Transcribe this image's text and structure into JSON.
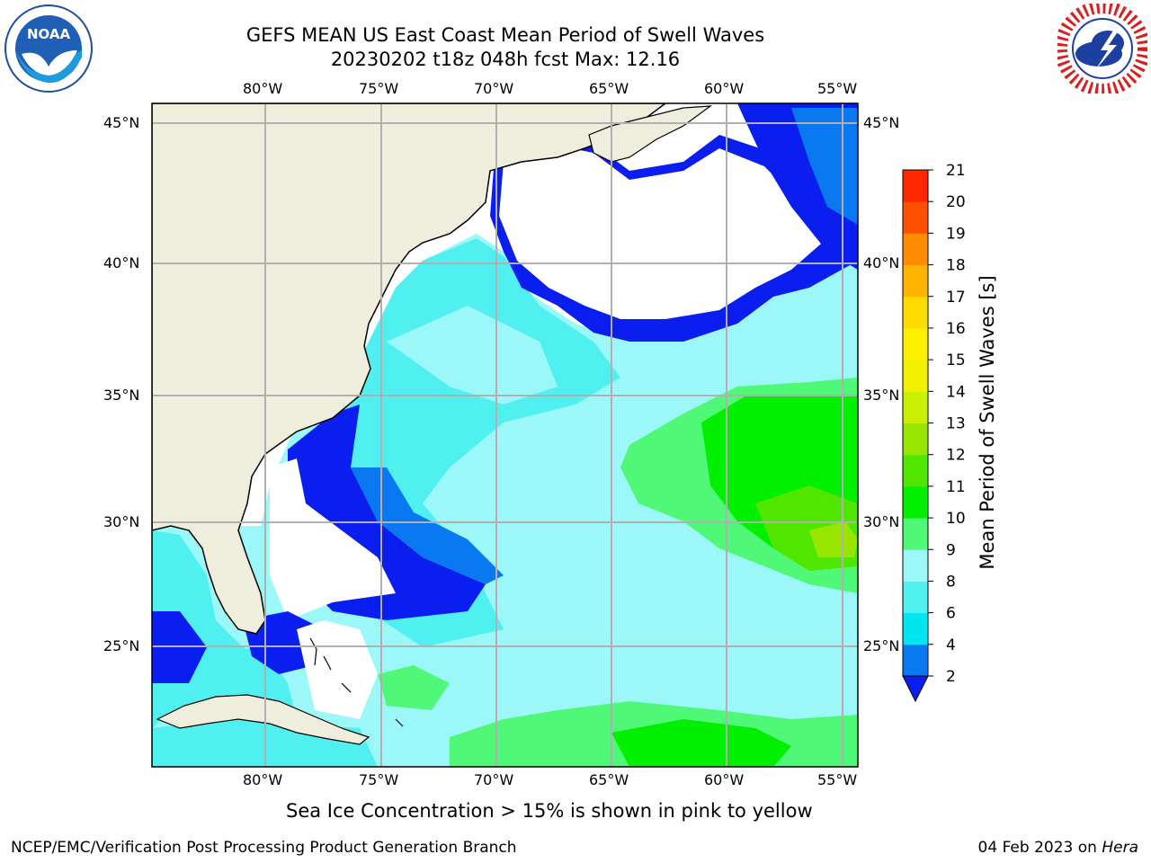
{
  "header": {
    "title_line1": "GEFS MEAN US East Coast Mean Period of Swell Waves",
    "title_line2": "20230202 t18z 048h fcst   Max: 12.16"
  },
  "logos": {
    "left": "noaa-logo",
    "right": "nws-logo"
  },
  "map": {
    "projection": "lat-lon",
    "lon_range": [
      -85,
      -54.4
    ],
    "lat_range": [
      20.4,
      46
    ],
    "lon_ticks": [
      "80°W",
      "75°W",
      "70°W",
      "65°W",
      "60°W",
      "55°W"
    ],
    "lat_ticks": [
      "45°N",
      "40°N",
      "35°N",
      "30°N",
      "25°N"
    ],
    "gridlines": true,
    "land_color": "#efeddc",
    "ocean_background": "#ffffff"
  },
  "colorbar": {
    "label": "Mean Period of Swell Waves [s]",
    "ticks": [
      "2",
      "4",
      "6",
      "8",
      "9",
      "10",
      "11",
      "12",
      "13",
      "14",
      "15",
      "16",
      "17",
      "18",
      "19",
      "20",
      "21"
    ],
    "colors": [
      "#0a78f0",
      "#00e6f0",
      "#50f0f0",
      "#9cf8f8",
      "#50f878",
      "#00f000",
      "#50e600",
      "#98e600",
      "#c8f000",
      "#f0f000",
      "#fff000",
      "#ffdc00",
      "#ffb400",
      "#ff8c00",
      "#ff5000",
      "#ff2800"
    ],
    "underflow_color": "#0a1ef0"
  },
  "footnote": "Sea Ice Concentration > 15% is shown in pink to yellow",
  "footer": {
    "left": "NCEP/EMC/Verification Post Processing Product Generation Branch",
    "right_date": "04 Feb 2023 on",
    "right_host": "Hera"
  }
}
